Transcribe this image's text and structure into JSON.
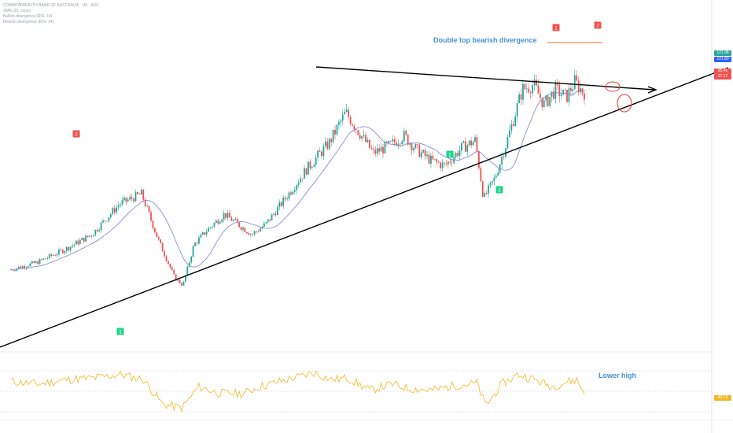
{
  "colors": {
    "up": "#26a69a",
    "down": "#ef5350",
    "ma": "#7b7fd8",
    "rsi": "#f2b825",
    "trendline": "#000000",
    "resistance": "#f29b6b",
    "annotation_text": "#4a90d9",
    "buy_marker": "#1fd38a",
    "sell_marker": "#ef5350",
    "ellipse": "#e53935",
    "grid": "#d9d9d9",
    "axis_text": "#b5b5b5",
    "tag_green": "#26a69a",
    "tag_blue": "#2962ff",
    "tag_red": "#ef5350",
    "tag_yellow": "#f2b825"
  },
  "legend": {
    "line1": "COMMONWEALTH BANK OF AUSTRALIA · 1M · ASX",
    "line2": "SMA (20, close)",
    "line3": "Bullish divergence (RSI, 14)",
    "line4": "Bearish divergence (RSI, 14)"
  },
  "annotations": {
    "double_top": "Double top bearish divergence",
    "rsi_note": "Lower high"
  },
  "markers": {
    "sell_1": "2",
    "sell_2": "1",
    "sell_3": "2",
    "buy_1": "1",
    "buy_2": "2",
    "buy_3": "2"
  },
  "price_tags": {
    "tag1": "121.98",
    "tag2": "121.80",
    "tag3": "95.46",
    "tag4": "37.17",
    "rsi_tag": "43.73"
  },
  "chart_data": [
    {
      "type": "candlestick",
      "series": [
        {
          "name": "price",
          "values": [
            [
              2003,
              30
            ],
            [
              2004,
              33
            ],
            [
              2005,
              38
            ],
            [
              2006,
              44
            ],
            [
              2007,
              56
            ],
            [
              2007.8,
              60
            ],
            [
              2008.4,
              42
            ],
            [
              2009.0,
              27
            ],
            [
              2009.3,
              24
            ],
            [
              2009.7,
              40
            ],
            [
              2010.2,
              46
            ],
            [
              2010.8,
              52
            ],
            [
              2011.3,
              48
            ],
            [
              2011.8,
              44
            ],
            [
              2012.3,
              48
            ],
            [
              2013.0,
              58
            ],
            [
              2013.8,
              70
            ],
            [
              2014.6,
              80
            ],
            [
              2015.2,
              92
            ],
            [
              2015.7,
              84
            ],
            [
              2016.2,
              76
            ],
            [
              2016.8,
              79
            ],
            [
              2017.3,
              83
            ],
            [
              2017.8,
              77
            ],
            [
              2018.3,
              73
            ],
            [
              2018.8,
              71
            ],
            [
              2019.4,
              78
            ],
            [
              2019.9,
              81
            ],
            [
              2020.2,
              58
            ],
            [
              2020.6,
              66
            ],
            [
              2021.0,
              79
            ],
            [
              2021.6,
              101
            ],
            [
              2022.0,
              103
            ],
            [
              2022.4,
              95
            ],
            [
              2022.8,
              101
            ],
            [
              2023.2,
              98
            ],
            [
              2023.5,
              104
            ],
            [
              2023.8,
              100
            ]
          ]
        }
      ],
      "moving_average": {
        "name": "SMA (20, close)"
      }
    },
    {
      "type": "line",
      "series": [
        {
          "name": "RSI",
          "values": [
            [
              2003,
              58
            ],
            [
              2004,
              55
            ],
            [
              2005,
              60
            ],
            [
              2006,
              62
            ],
            [
              2007,
              66
            ],
            [
              2007.8,
              60
            ],
            [
              2008.5,
              32
            ],
            [
              2009.2,
              28
            ],
            [
              2009.8,
              52
            ],
            [
              2010.5,
              45
            ],
            [
              2011.4,
              44
            ],
            [
              2012.0,
              52
            ],
            [
              2013.0,
              60
            ],
            [
              2014.0,
              68
            ],
            [
              2014.6,
              60
            ],
            [
              2015.2,
              62
            ],
            [
              2016.0,
              48
            ],
            [
              2016.8,
              55
            ],
            [
              2017.4,
              50
            ],
            [
              2018.3,
              48
            ],
            [
              2019.0,
              53
            ],
            [
              2019.9,
              56
            ],
            [
              2020.2,
              30
            ],
            [
              2020.8,
              55
            ],
            [
              2021.4,
              66
            ],
            [
              2022.0,
              60
            ],
            [
              2022.6,
              52
            ],
            [
              2023.2,
              58
            ],
            [
              2023.5,
              60
            ],
            [
              2023.8,
              44
            ]
          ]
        }
      ]
    }
  ]
}
